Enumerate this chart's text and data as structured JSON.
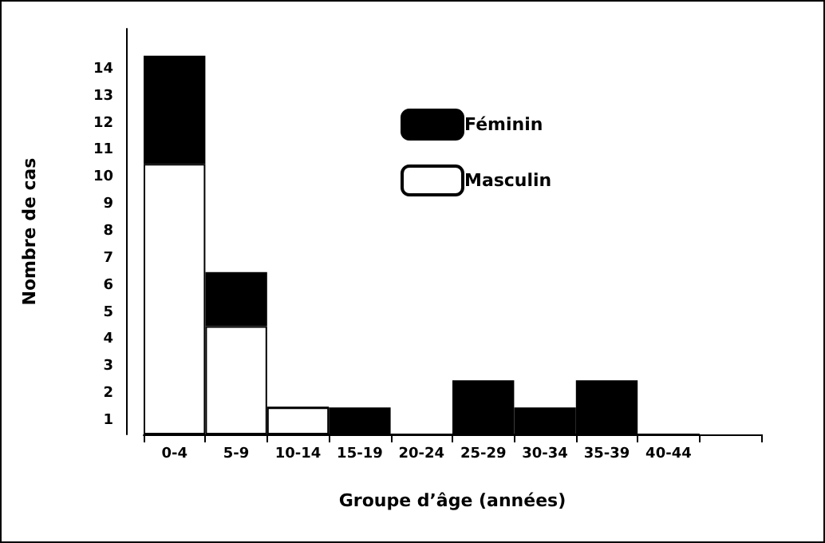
{
  "chart_data": {
    "type": "bar",
    "stacked": true,
    "xlabel": "Groupe d’âge (années)",
    "ylabel": "Nombre de cas",
    "categories": [
      "0-4",
      "5-9",
      "10-14",
      "15-19",
      "20-24",
      "25-29",
      "30-34",
      "35-39",
      "40-44",
      null
    ],
    "series": [
      {
        "name": "Masculin",
        "color": "#ffffff",
        "values": [
          10,
          4,
          1,
          0,
          0,
          0,
          0,
          0,
          0,
          null
        ]
      },
      {
        "name": "Féminin",
        "color": "#000000",
        "values": [
          4,
          2,
          0,
          1,
          0,
          2,
          1,
          2,
          0,
          null
        ]
      }
    ],
    "ylim": [
      0,
      15
    ],
    "yticks": [
      {
        "value": 0.5,
        "label": "1"
      },
      {
        "value": 1.5,
        "label": "2"
      },
      {
        "value": 2.5,
        "label": "3"
      },
      {
        "value": 3.5,
        "label": "4"
      },
      {
        "value": 4.5,
        "label": "5"
      },
      {
        "value": 5.5,
        "label": "6"
      },
      {
        "value": 6.5,
        "label": "7"
      },
      {
        "value": 7.5,
        "label": "8"
      },
      {
        "value": 8.5,
        "label": "9"
      },
      {
        "value": 9.5,
        "label": "10"
      },
      {
        "value": 10.5,
        "label": "11"
      },
      {
        "value": 11.5,
        "label": "12"
      },
      {
        "value": 12.5,
        "label": "13"
      },
      {
        "value": 13.5,
        "label": "14"
      }
    ],
    "legend": "top right",
    "grid": false
  }
}
